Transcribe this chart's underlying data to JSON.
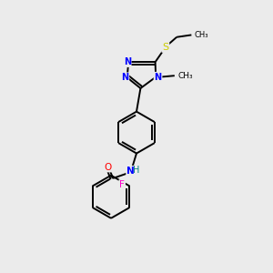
{
  "background_color": "#ebebeb",
  "bond_color": "#000000",
  "atom_colors": {
    "N": "#0000ff",
    "O": "#ff0000",
    "F": "#ff00cc",
    "S": "#cccc00",
    "C": "#000000",
    "H": "#008080"
  }
}
